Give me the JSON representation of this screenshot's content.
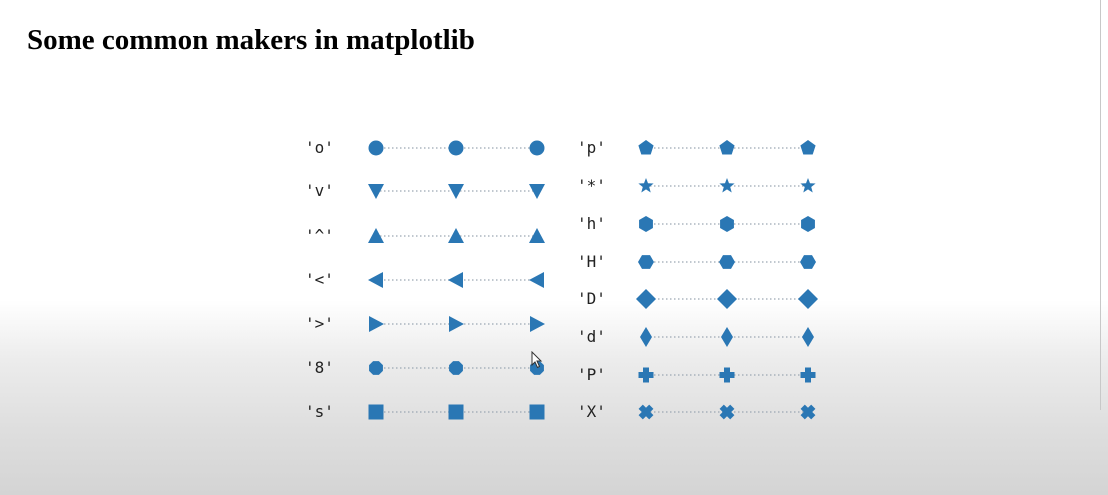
{
  "title": "Some common makers in matplotlib",
  "marker_color": "#2a77b4",
  "line_color": "#9aa6b2",
  "left_column": [
    {
      "label": "'o'",
      "shape": "circle"
    },
    {
      "label": "'v'",
      "shape": "triangle-down"
    },
    {
      "label": "'^'",
      "shape": "triangle-up"
    },
    {
      "label": "'<'",
      "shape": "triangle-left"
    },
    {
      "label": "'>'",
      "shape": "triangle-right"
    },
    {
      "label": "'8'",
      "shape": "octagon"
    },
    {
      "label": "'s'",
      "shape": "square"
    }
  ],
  "right_column": [
    {
      "label": "'p'",
      "shape": "pentagon"
    },
    {
      "label": "'*'",
      "shape": "star"
    },
    {
      "label": "'h'",
      "shape": "hexagon-vertical"
    },
    {
      "label": "'H'",
      "shape": "hexagon-horizontal"
    },
    {
      "label": "'D'",
      "shape": "diamond"
    },
    {
      "label": "'d'",
      "shape": "thin-diamond"
    },
    {
      "label": "'P'",
      "shape": "plus-filled"
    },
    {
      "label": "'X'",
      "shape": "x-filled"
    }
  ]
}
